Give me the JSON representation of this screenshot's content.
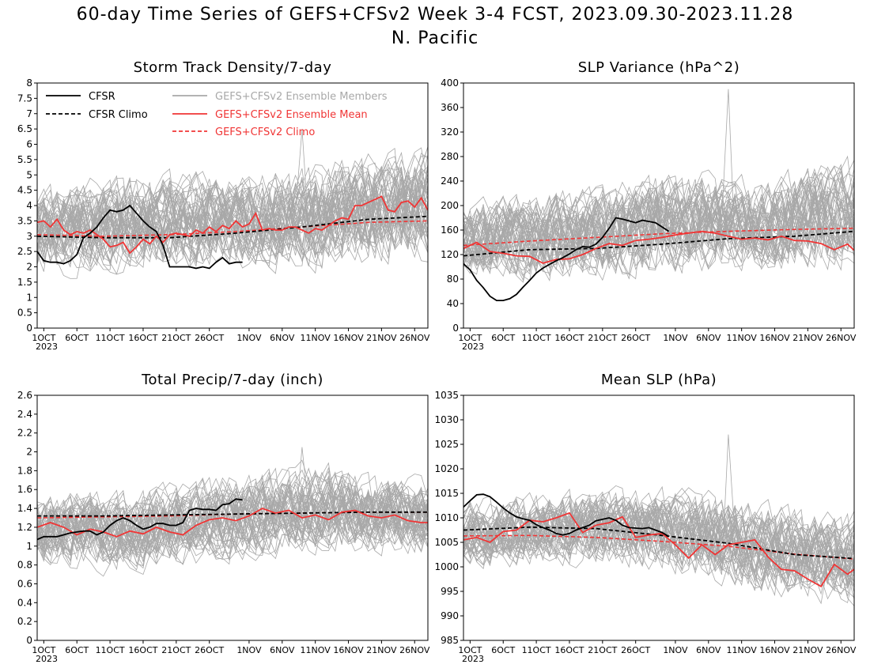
{
  "title_line1": "60-day Time Series of GEFS+CFSv2 Week 3-4 FCST, 2023.09.30-2023.11.28",
  "title_line2": "N. Pacific",
  "x_ticks": [
    "1OCT",
    "6OCT",
    "11OCT",
    "16OCT",
    "21OCT",
    "26OCT",
    "1NOV",
    "6NOV",
    "11NOV",
    "16NOV",
    "21NOV",
    "26NOV"
  ],
  "x_tick_days": [
    1,
    6,
    11,
    16,
    21,
    26,
    32,
    37,
    42,
    47,
    52,
    57
  ],
  "x_year": "2023",
  "legend": {
    "cfsr": "CFSR",
    "cfsr_climo": "CFSR Climo",
    "members": "GEFS+CFSv2 Ensemble Members",
    "mean": "GEFS+CFSv2 Ensemble Mean",
    "climo": "GEFS+CFSv2 Climo"
  },
  "colors": {
    "cfsr": "#000000",
    "members": "#a8a8a8",
    "mean": "#f03535",
    "climo": "#f03535"
  },
  "chart_data": [
    {
      "type": "line",
      "title": "Storm Track Density/7-day",
      "ylim": [
        0,
        8
      ],
      "y_ticks": [
        "0",
        "0.5",
        "1",
        "1.5",
        "2",
        "2.5",
        "3",
        "3.5",
        "4",
        "4.5",
        "5",
        "5.5",
        "6",
        "6.5",
        "7",
        "7.5",
        "8"
      ],
      "x_days": [
        0,
        59
      ],
      "legend_location": "top-left",
      "members_band": {
        "low": [
          1.2,
          1.4,
          1.5,
          1.4,
          1.6
        ],
        "high": [
          5.0,
          5.5,
          5.5,
          6.0,
          6.5
        ],
        "peak": 6.5
      },
      "series": [
        {
          "name": "CFSR",
          "x": [
            0,
            1,
            2,
            3,
            4,
            5,
            6,
            7,
            8,
            9,
            10,
            11,
            12,
            13,
            14,
            15,
            16,
            17,
            18,
            19,
            20,
            21,
            22,
            23,
            24,
            25,
            26,
            27,
            28,
            29,
            30,
            31
          ],
          "values": [
            2.5,
            2.2,
            2.15,
            2.15,
            2.1,
            2.2,
            2.4,
            2.95,
            3.1,
            3.3,
            3.6,
            3.85,
            3.8,
            3.85,
            4.0,
            3.75,
            3.5,
            3.3,
            3.15,
            2.7,
            2.0,
            2.0,
            2.0,
            2.0,
            1.95,
            2.0,
            1.95,
            2.15,
            2.3,
            2.1,
            2.15,
            2.15
          ]
        },
        {
          "name": "CFSR Climo",
          "x": [
            0,
            10,
            20,
            30,
            40,
            50,
            59
          ],
          "values": [
            3.0,
            2.95,
            2.95,
            3.1,
            3.3,
            3.55,
            3.65
          ]
        },
        {
          "name": "GEFS+CFSv2 Ensemble Mean",
          "x": [
            0,
            1,
            2,
            3,
            4,
            5,
            6,
            7,
            8,
            9,
            10,
            11,
            12,
            13,
            14,
            15,
            16,
            17,
            18,
            19,
            20,
            21,
            22,
            23,
            24,
            25,
            26,
            27,
            28,
            29,
            30,
            31,
            32,
            33,
            34,
            35,
            36,
            37,
            38,
            39,
            40,
            41,
            42,
            43,
            44,
            45,
            46,
            47,
            48,
            49,
            50,
            51,
            52,
            53,
            54,
            55,
            56,
            57,
            58,
            59
          ],
          "values": [
            3.45,
            3.5,
            3.3,
            3.55,
            3.2,
            3.05,
            3.15,
            3.1,
            3.2,
            3.05,
            2.9,
            2.65,
            2.7,
            2.8,
            2.45,
            2.65,
            2.9,
            2.75,
            3.0,
            2.8,
            3.05,
            3.1,
            3.05,
            3.0,
            3.2,
            3.1,
            3.3,
            3.15,
            3.35,
            3.25,
            3.5,
            3.3,
            3.4,
            3.75,
            3.2,
            3.25,
            3.2,
            3.2,
            3.3,
            3.3,
            3.2,
            3.1,
            3.25,
            3.2,
            3.35,
            3.5,
            3.6,
            3.55,
            4.0,
            4.0,
            4.1,
            4.2,
            4.3,
            3.85,
            3.8,
            4.1,
            4.15,
            3.95,
            4.25,
            3.85
          ]
        },
        {
          "name": "GEFS+CFSv2 Climo",
          "x": [
            0,
            10,
            20,
            30,
            40,
            50,
            59
          ],
          "values": [
            3.05,
            3.0,
            3.05,
            3.15,
            3.3,
            3.45,
            3.5
          ]
        }
      ]
    },
    {
      "type": "line",
      "title": "SLP Variance (hPa^2)",
      "ylim": [
        0,
        400
      ],
      "y_ticks": [
        "0",
        "40",
        "80",
        "120",
        "160",
        "200",
        "240",
        "280",
        "320",
        "360",
        "400"
      ],
      "x_days": [
        0,
        59
      ],
      "members_band": {
        "low": [
          60,
          55,
          60,
          70,
          75
        ],
        "high": [
          230,
          250,
          280,
          270,
          300
        ],
        "peak": 390
      },
      "series": [
        {
          "name": "CFSR",
          "x": [
            0,
            1,
            2,
            3,
            4,
            5,
            6,
            7,
            8,
            9,
            10,
            11,
            12,
            13,
            14,
            15,
            16,
            17,
            18,
            19,
            20,
            21,
            22,
            23,
            24,
            25,
            26,
            27,
            28,
            29,
            30,
            31
          ],
          "values": [
            105,
            95,
            78,
            66,
            52,
            45,
            45,
            48,
            55,
            67,
            78,
            90,
            98,
            104,
            110,
            115,
            121,
            128,
            133,
            132,
            137,
            148,
            163,
            180,
            178,
            175,
            172,
            176,
            174,
            172,
            165,
            158
          ]
        },
        {
          "name": "CFSR Climo",
          "x": [
            0,
            10,
            20,
            30,
            40,
            50,
            59
          ],
          "values": [
            118,
            128,
            130,
            137,
            146,
            150,
            158
          ]
        },
        {
          "name": "GEFS+CFSv2 Ensemble Mean",
          "x": [
            0,
            2,
            4,
            6,
            8,
            10,
            12,
            14,
            16,
            18,
            20,
            22,
            24,
            26,
            28,
            30,
            32,
            34,
            36,
            38,
            40,
            42,
            44,
            46,
            48,
            50,
            52,
            54,
            56,
            58,
            59
          ],
          "values": [
            130,
            140,
            125,
            122,
            118,
            117,
            106,
            112,
            113,
            120,
            130,
            138,
            135,
            143,
            145,
            148,
            152,
            155,
            158,
            155,
            150,
            145,
            147,
            144,
            150,
            143,
            142,
            138,
            128,
            137,
            127
          ]
        },
        {
          "name": "GEFS+CFSv2 Climo",
          "x": [
            0,
            10,
            20,
            30,
            40,
            50,
            59
          ],
          "values": [
            135,
            142,
            148,
            154,
            158,
            161,
            163
          ]
        }
      ]
    },
    {
      "type": "line",
      "title": "Total Precip/7-day (inch)",
      "ylim": [
        0,
        2.6
      ],
      "y_ticks": [
        "0",
        "0.2",
        "0.4",
        "0.6",
        "0.8",
        "1",
        "1.2",
        "1.4",
        "1.6",
        "1.8",
        "2",
        "2.2",
        "2.4",
        "2.6"
      ],
      "x_days": [
        0,
        59
      ],
      "members_band": {
        "low": [
          0.7,
          0.6,
          0.7,
          0.8,
          0.8
        ],
        "high": [
          1.7,
          1.7,
          1.9,
          2.0,
          1.8
        ],
        "peak": 2.05
      },
      "series": [
        {
          "name": "CFSR",
          "x": [
            0,
            1,
            2,
            3,
            4,
            5,
            6,
            7,
            8,
            9,
            10,
            11,
            12,
            13,
            14,
            15,
            16,
            17,
            18,
            19,
            20,
            21,
            22,
            23,
            24,
            25,
            26,
            27,
            28,
            29,
            30,
            31
          ],
          "values": [
            1.07,
            1.1,
            1.1,
            1.1,
            1.12,
            1.14,
            1.15,
            1.16,
            1.16,
            1.12,
            1.15,
            1.22,
            1.27,
            1.3,
            1.27,
            1.22,
            1.18,
            1.2,
            1.24,
            1.24,
            1.22,
            1.22,
            1.25,
            1.38,
            1.4,
            1.39,
            1.39,
            1.38,
            1.44,
            1.45,
            1.5,
            1.49
          ]
        },
        {
          "name": "CFSR Climo",
          "x": [
            0,
            10,
            20,
            30,
            40,
            50,
            59
          ],
          "values": [
            1.32,
            1.32,
            1.33,
            1.34,
            1.35,
            1.36,
            1.36
          ]
        },
        {
          "name": "GEFS+CFSv2 Ensemble Mean",
          "x": [
            0,
            2,
            4,
            6,
            8,
            10,
            12,
            14,
            16,
            18,
            20,
            22,
            24,
            26,
            28,
            30,
            32,
            34,
            36,
            38,
            40,
            42,
            44,
            46,
            48,
            50,
            52,
            54,
            56,
            58,
            59
          ],
          "values": [
            1.2,
            1.25,
            1.2,
            1.12,
            1.18,
            1.15,
            1.1,
            1.16,
            1.13,
            1.2,
            1.15,
            1.12,
            1.22,
            1.28,
            1.3,
            1.27,
            1.32,
            1.4,
            1.35,
            1.38,
            1.3,
            1.33,
            1.28,
            1.36,
            1.38,
            1.32,
            1.3,
            1.33,
            1.27,
            1.25,
            1.25
          ]
        },
        {
          "name": "GEFS+CFSv2 Climo",
          "x": [
            0,
            10,
            20,
            30,
            40,
            50,
            59
          ],
          "values": [
            1.3,
            1.31,
            1.32,
            1.34,
            1.35,
            1.36,
            1.36
          ]
        }
      ]
    },
    {
      "type": "line",
      "title": "Mean SLP (hPa)",
      "ylim": [
        985,
        1035
      ],
      "y_ticks": [
        "985",
        "990",
        "995",
        "1000",
        "1005",
        "1010",
        "1015",
        "1020",
        "1025",
        "1030",
        "1035"
      ],
      "x_days": [
        0,
        59
      ],
      "members_band": {
        "low": [
          998,
          998,
          997,
          992,
          989
        ],
        "high": [
          1016,
          1018,
          1019,
          1016,
          1014
        ],
        "peak": 1027
      },
      "series": [
        {
          "name": "CFSR",
          "x": [
            0,
            1,
            2,
            3,
            4,
            5,
            6,
            7,
            8,
            9,
            10,
            11,
            12,
            13,
            14,
            15,
            16,
            17,
            18,
            19,
            20,
            21,
            22,
            23,
            24,
            25,
            26,
            27,
            28,
            29,
            30,
            31
          ],
          "values": [
            1012.2,
            1013.5,
            1014.7,
            1014.8,
            1014.3,
            1013.2,
            1012,
            1011,
            1010.2,
            1009.8,
            1009.5,
            1008.6,
            1008,
            1007.5,
            1006.8,
            1006.5,
            1006.8,
            1007.5,
            1008,
            1008.5,
            1009.4,
            1009.7,
            1010,
            1009.5,
            1008.5,
            1008,
            1007.9,
            1007.8,
            1008,
            1007.5,
            1007,
            1006.2
          ]
        },
        {
          "name": "CFSR Climo",
          "x": [
            0,
            10,
            20,
            30,
            40,
            50,
            59
          ],
          "values": [
            1007.5,
            1008.1,
            1007.8,
            1006.4,
            1004.8,
            1002.5,
            1001.7
          ]
        },
        {
          "name": "GEFS+CFSv2 Ensemble Mean",
          "x": [
            0,
            2,
            4,
            6,
            8,
            10,
            12,
            14,
            16,
            18,
            20,
            22,
            24,
            26,
            28,
            30,
            32,
            34,
            36,
            38,
            40,
            42,
            44,
            46,
            48,
            50,
            52,
            54,
            56,
            58,
            59
          ],
          "values": [
            1005.5,
            1006,
            1005,
            1007.2,
            1007.5,
            1009.5,
            1009.2,
            1010,
            1011,
            1007,
            1008.5,
            1009,
            1010.2,
            1006,
            1006.5,
            1006.8,
            1004.5,
            1001.8,
            1004.5,
            1002.5,
            1004.5,
            1005,
            1005.5,
            1002,
            999.5,
            999.2,
            997.5,
            996,
            1000.5,
            998.5,
            999.5
          ]
        },
        {
          "name": "GEFS+CFSv2 Climo",
          "x": [
            0,
            10,
            20,
            30,
            40,
            50,
            59
          ],
          "values": [
            1006.3,
            1006.4,
            1006,
            1005.2,
            1004.2,
            1002.6,
            1001.6
          ]
        }
      ]
    }
  ]
}
